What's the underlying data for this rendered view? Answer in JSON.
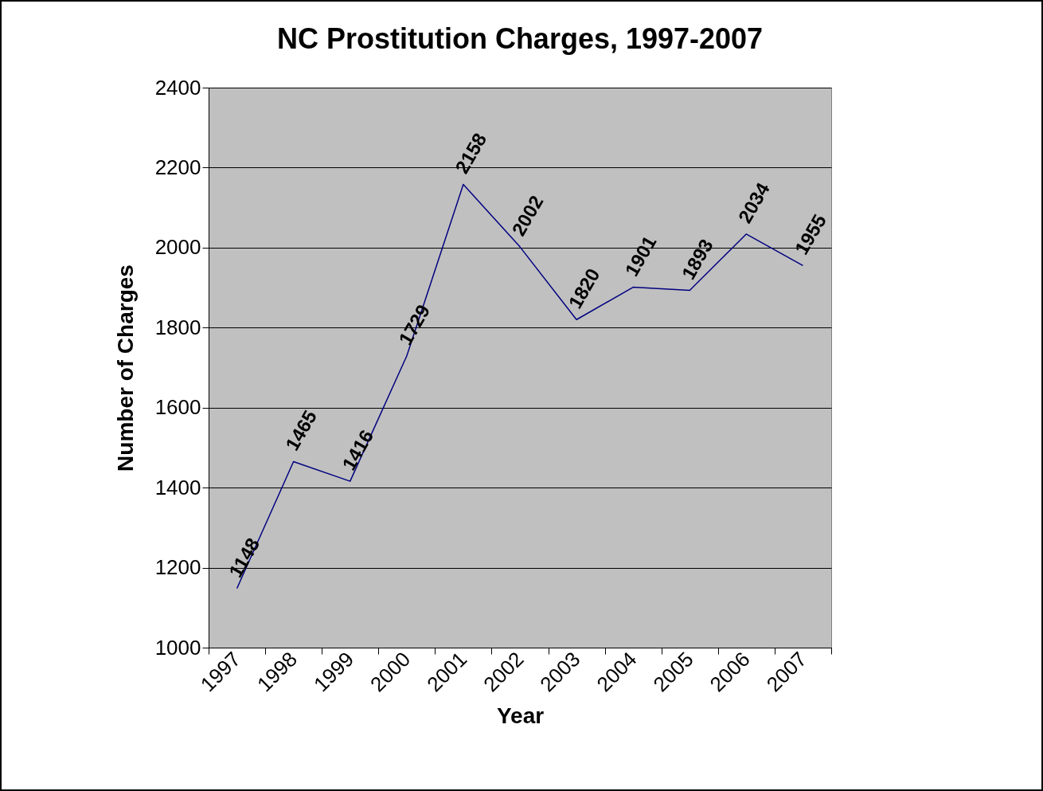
{
  "chart_data": {
    "type": "line",
    "title": "NC Prostitution Charges, 1997-2007",
    "xlabel": "Year",
    "ylabel": "Number of Charges",
    "categories": [
      "1997",
      "1998",
      "1999",
      "2000",
      "2001",
      "2002",
      "2003",
      "2004",
      "2005",
      "2006",
      "2007"
    ],
    "series": [
      {
        "color": "#000080",
        "values": [
          1148,
          1465,
          1416,
          1729,
          2158,
          2002,
          1820,
          1901,
          1893,
          2034,
          1955
        ]
      }
    ],
    "ylim": [
      1000,
      2400
    ],
    "yticks": [
      1000,
      1200,
      1400,
      1600,
      1800,
      2000,
      2200,
      2400
    ],
    "grid": "y",
    "data_labels": true,
    "legend": false
  }
}
